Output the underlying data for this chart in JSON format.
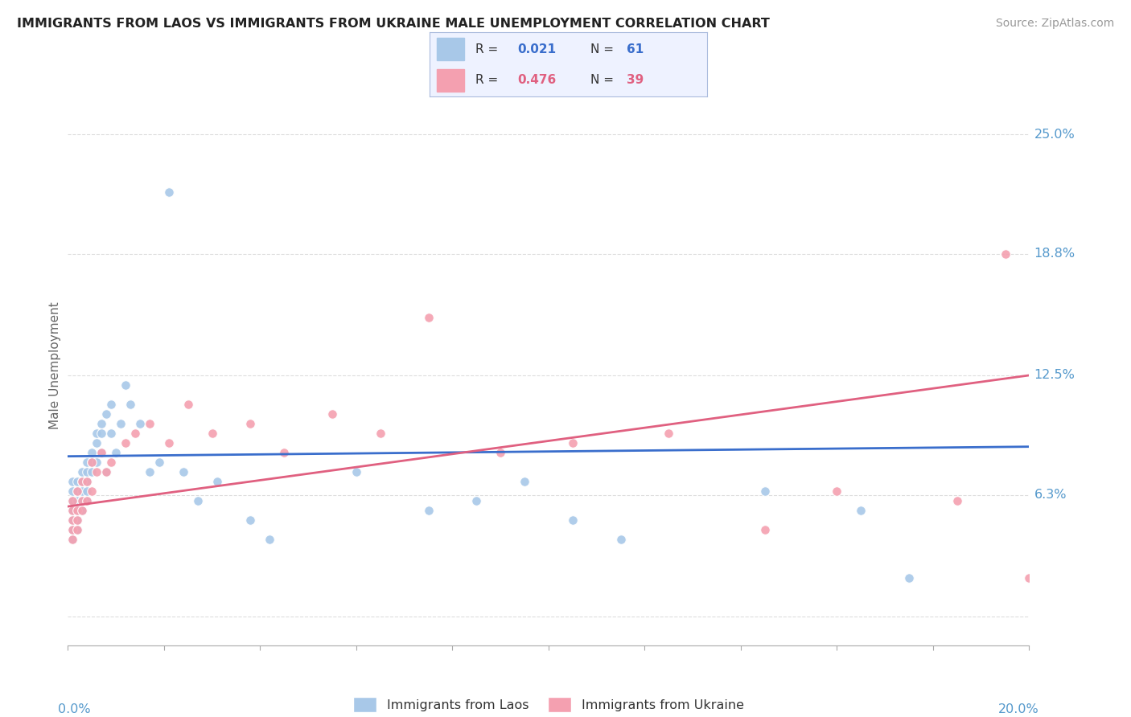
{
  "title": "IMMIGRANTS FROM LAOS VS IMMIGRANTS FROM UKRAINE MALE UNEMPLOYMENT CORRELATION CHART",
  "source": "Source: ZipAtlas.com",
  "ylabel": "Male Unemployment",
  "x_lim": [
    0.0,
    0.2
  ],
  "y_lim": [
    -0.015,
    0.275
  ],
  "laos_R": 0.021,
  "laos_N": 61,
  "ukraine_R": 0.476,
  "ukraine_N": 39,
  "laos_color": "#a8c8e8",
  "ukraine_color": "#f4a0b0",
  "laos_line_color": "#3a6ecc",
  "ukraine_line_color": "#e06080",
  "background_color": "#ffffff",
  "grid_color": "#dddddd",
  "title_color": "#222222",
  "tick_label_color": "#5599cc",
  "y_tick_positions": [
    0.0,
    0.063,
    0.125,
    0.188,
    0.25
  ],
  "y_tick_labels": [
    "",
    "6.3%",
    "12.5%",
    "18.8%",
    "25.0%"
  ],
  "laos_line_y0": 0.083,
  "laos_line_y1": 0.088,
  "ukraine_line_y0": 0.057,
  "ukraine_line_y1": 0.125,
  "laos_x": [
    0.001,
    0.001,
    0.001,
    0.001,
    0.001,
    0.001,
    0.001,
    0.001,
    0.002,
    0.002,
    0.002,
    0.002,
    0.002,
    0.002,
    0.002,
    0.003,
    0.003,
    0.003,
    0.003,
    0.003,
    0.003,
    0.004,
    0.004,
    0.004,
    0.004,
    0.004,
    0.005,
    0.005,
    0.005,
    0.006,
    0.006,
    0.006,
    0.007,
    0.007,
    0.007,
    0.008,
    0.008,
    0.009,
    0.009,
    0.01,
    0.011,
    0.012,
    0.013,
    0.015,
    0.017,
    0.019,
    0.021,
    0.024,
    0.027,
    0.031,
    0.038,
    0.042,
    0.06,
    0.075,
    0.085,
    0.095,
    0.105,
    0.115,
    0.145,
    0.165,
    0.175
  ],
  "laos_y": [
    0.045,
    0.05,
    0.055,
    0.06,
    0.065,
    0.07,
    0.055,
    0.04,
    0.055,
    0.06,
    0.065,
    0.05,
    0.045,
    0.07,
    0.055,
    0.06,
    0.065,
    0.055,
    0.07,
    0.075,
    0.06,
    0.065,
    0.07,
    0.075,
    0.08,
    0.06,
    0.08,
    0.085,
    0.075,
    0.09,
    0.095,
    0.08,
    0.1,
    0.085,
    0.095,
    0.105,
    0.075,
    0.11,
    0.095,
    0.085,
    0.1,
    0.12,
    0.11,
    0.1,
    0.075,
    0.08,
    0.22,
    0.075,
    0.06,
    0.07,
    0.05,
    0.04,
    0.075,
    0.055,
    0.06,
    0.07,
    0.05,
    0.04,
    0.065,
    0.055,
    0.02
  ],
  "ukraine_x": [
    0.001,
    0.001,
    0.001,
    0.001,
    0.001,
    0.002,
    0.002,
    0.002,
    0.002,
    0.003,
    0.003,
    0.003,
    0.004,
    0.004,
    0.005,
    0.005,
    0.006,
    0.007,
    0.008,
    0.009,
    0.012,
    0.014,
    0.017,
    0.021,
    0.025,
    0.03,
    0.038,
    0.045,
    0.055,
    0.065,
    0.075,
    0.09,
    0.105,
    0.125,
    0.145,
    0.16,
    0.185,
    0.195,
    0.2
  ],
  "ukraine_y": [
    0.045,
    0.05,
    0.055,
    0.06,
    0.04,
    0.055,
    0.065,
    0.05,
    0.045,
    0.06,
    0.07,
    0.055,
    0.07,
    0.06,
    0.08,
    0.065,
    0.075,
    0.085,
    0.075,
    0.08,
    0.09,
    0.095,
    0.1,
    0.09,
    0.11,
    0.095,
    0.1,
    0.085,
    0.105,
    0.095,
    0.155,
    0.085,
    0.09,
    0.095,
    0.045,
    0.065,
    0.06,
    0.188,
    0.02
  ]
}
